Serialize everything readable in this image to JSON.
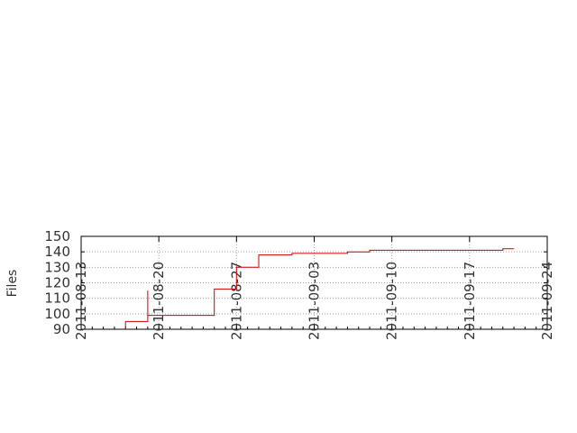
{
  "chart_data": {
    "type": "line",
    "step": true,
    "title": "",
    "xlabel": "",
    "ylabel": "Files",
    "ylim": [
      90,
      150
    ],
    "xlim": [
      "2011-08-13",
      "2011-09-24"
    ],
    "y_ticks": [
      90,
      100,
      110,
      120,
      130,
      140,
      150
    ],
    "x_ticks": [
      "2011-08-13",
      "2011-08-20",
      "2011-08-27",
      "2011-09-03",
      "2011-09-10",
      "2011-09-17",
      "2011-09-24"
    ],
    "grid": true,
    "legend": "none",
    "series": [
      {
        "color": "#cc0000",
        "points": [
          [
            "2011-08-17",
            90
          ],
          [
            "2011-08-17",
            95
          ],
          [
            "2011-08-19",
            95
          ],
          [
            "2011-08-19",
            115
          ],
          [
            "2011-08-19",
            99
          ],
          [
            "2011-08-25",
            99
          ],
          [
            "2011-08-25",
            116
          ],
          [
            "2011-08-27",
            116
          ],
          [
            "2011-08-27",
            130
          ],
          [
            "2011-08-29",
            130
          ],
          [
            "2011-08-29",
            138
          ],
          [
            "2011-09-01",
            138
          ],
          [
            "2011-09-01",
            139
          ],
          [
            "2011-09-06",
            139
          ],
          [
            "2011-09-06",
            140
          ],
          [
            "2011-09-08",
            140
          ],
          [
            "2011-09-08",
            141
          ],
          [
            "2011-09-20",
            141
          ],
          [
            "2011-09-20",
            142
          ],
          [
            "2011-09-21",
            142
          ]
        ]
      }
    ]
  }
}
